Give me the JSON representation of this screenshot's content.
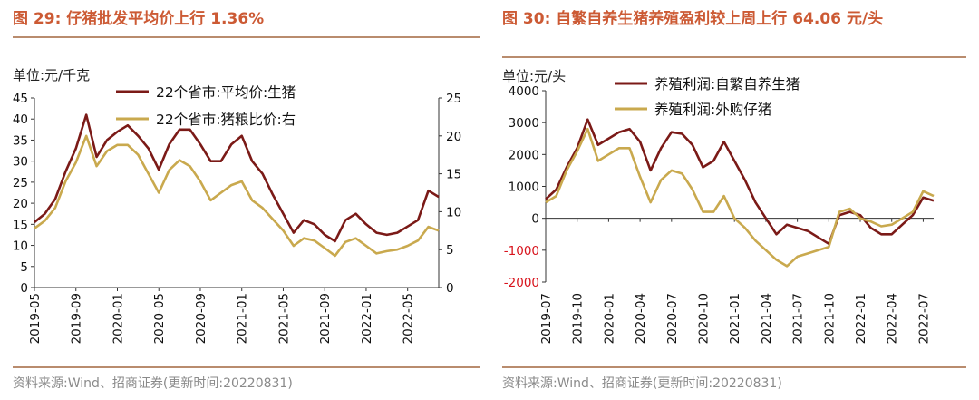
{
  "figures": [
    {
      "title": "图 29:  仔猪批发平均价上行 1.36%",
      "source": "资料来源:Wind、招商证券(更新时间:20220831)"
    },
    {
      "title": "图 30:  自繁自养生猪养殖盈利较上周上行 64.06 元/头",
      "source": "资料来源:Wind、招商证券(更新时间:20220831)"
    }
  ],
  "chart_data": [
    {
      "type": "line",
      "ylabel": "单位:元/千克",
      "ylim": [
        0,
        45
      ],
      "y_ticks": [
        0,
        5,
        10,
        15,
        20,
        25,
        30,
        35,
        40,
        45
      ],
      "y2lim": [
        0,
        25
      ],
      "y2_ticks": [
        0,
        5,
        10,
        15,
        20,
        25
      ],
      "x_ticks": [
        "2019-05",
        "2019-09",
        "2020-01",
        "2020-05",
        "2020-09",
        "2021-01",
        "2021-05",
        "2021-09",
        "2022-01",
        "2022-05"
      ],
      "legend_position": "top",
      "series": [
        {
          "name": "22个省市:平均价:生猪",
          "axis": "left",
          "color": "#7b1a17",
          "points": [
            [
              "2019-05",
              15.5
            ],
            [
              "2019-06",
              17.5
            ],
            [
              "2019-07",
              21
            ],
            [
              "2019-08",
              27.5
            ],
            [
              "2019-09",
              33
            ],
            [
              "2019-10",
              41
            ],
            [
              "2019-11",
              31
            ],
            [
              "2019-12",
              35
            ],
            [
              "2020-01",
              37
            ],
            [
              "2020-02",
              38.5
            ],
            [
              "2020-03",
              36
            ],
            [
              "2020-04",
              33
            ],
            [
              "2020-05",
              28
            ],
            [
              "2020-06",
              34
            ],
            [
              "2020-07",
              37.5
            ],
            [
              "2020-08",
              37.5
            ],
            [
              "2020-09",
              34
            ],
            [
              "2020-10",
              30
            ],
            [
              "2020-11",
              30
            ],
            [
              "2020-12",
              34
            ],
            [
              "2021-01",
              36
            ],
            [
              "2021-02",
              30
            ],
            [
              "2021-03",
              27
            ],
            [
              "2021-04",
              22
            ],
            [
              "2021-05",
              17.5
            ],
            [
              "2021-06",
              13
            ],
            [
              "2021-07",
              16
            ],
            [
              "2021-08",
              15
            ],
            [
              "2021-09",
              12.5
            ],
            [
              "2021-10",
              11
            ],
            [
              "2021-11",
              16
            ],
            [
              "2021-12",
              17.5
            ],
            [
              "2022-01",
              15
            ],
            [
              "2022-02",
              13
            ],
            [
              "2022-03",
              12.5
            ],
            [
              "2022-04",
              13
            ],
            [
              "2022-05",
              14.5
            ],
            [
              "2022-06",
              16
            ],
            [
              "2022-07",
              23
            ],
            [
              "2022-08",
              21.5
            ]
          ]
        },
        {
          "name": "22个省市:猪粮比价:右",
          "axis": "right",
          "color": "#c9a94e",
          "points": [
            [
              "2019-05",
              7.8
            ],
            [
              "2019-06",
              8.8
            ],
            [
              "2019-07",
              10.5
            ],
            [
              "2019-08",
              14
            ],
            [
              "2019-09",
              16.5
            ],
            [
              "2019-10",
              20
            ],
            [
              "2019-11",
              16
            ],
            [
              "2019-12",
              18
            ],
            [
              "2020-01",
              18.8
            ],
            [
              "2020-02",
              18.8
            ],
            [
              "2020-03",
              17.5
            ],
            [
              "2020-04",
              15
            ],
            [
              "2020-05",
              12.5
            ],
            [
              "2020-06",
              15.5
            ],
            [
              "2020-07",
              16.8
            ],
            [
              "2020-08",
              16
            ],
            [
              "2020-09",
              14
            ],
            [
              "2020-10",
              11.5
            ],
            [
              "2020-11",
              12.5
            ],
            [
              "2020-12",
              13.5
            ],
            [
              "2021-01",
              14
            ],
            [
              "2021-02",
              11.5
            ],
            [
              "2021-03",
              10.5
            ],
            [
              "2021-04",
              9
            ],
            [
              "2021-05",
              7.5
            ],
            [
              "2021-06",
              5.5
            ],
            [
              "2021-07",
              6.5
            ],
            [
              "2021-08",
              6.2
            ],
            [
              "2021-09",
              5.2
            ],
            [
              "2021-10",
              4.2
            ],
            [
              "2021-11",
              6
            ],
            [
              "2021-12",
              6.5
            ],
            [
              "2022-01",
              5.5
            ],
            [
              "2022-02",
              4.5
            ],
            [
              "2022-03",
              4.8
            ],
            [
              "2022-04",
              5
            ],
            [
              "2022-05",
              5.5
            ],
            [
              "2022-06",
              6.2
            ],
            [
              "2022-07",
              8
            ],
            [
              "2022-08",
              7.5
            ]
          ]
        }
      ]
    },
    {
      "type": "line",
      "ylabel": "单位:元/头",
      "ylim": [
        -2000,
        4000
      ],
      "y_ticks": [
        -2000,
        -1000,
        0,
        1000,
        2000,
        3000,
        4000
      ],
      "x_ticks": [
        "2019-07",
        "2019-10",
        "2020-01",
        "2020-04",
        "2020-07",
        "2020-10",
        "2021-01",
        "2021-04",
        "2021-07",
        "2021-10",
        "2022-01",
        "2022-04",
        "2022-07"
      ],
      "legend_position": "top",
      "series": [
        {
          "name": "养殖利润:自繁自养生猪",
          "color": "#7b1a17",
          "points": [
            [
              "2019-07",
              600
            ],
            [
              "2019-08",
              900
            ],
            [
              "2019-09",
              1600
            ],
            [
              "2019-10",
              2200
            ],
            [
              "2019-11",
              3100
            ],
            [
              "2019-12",
              2300
            ],
            [
              "2020-01",
              2500
            ],
            [
              "2020-02",
              2700
            ],
            [
              "2020-03",
              2800
            ],
            [
              "2020-04",
              2400
            ],
            [
              "2020-05",
              1500
            ],
            [
              "2020-06",
              2200
            ],
            [
              "2020-07",
              2700
            ],
            [
              "2020-08",
              2650
            ],
            [
              "2020-09",
              2300
            ],
            [
              "2020-10",
              1600
            ],
            [
              "2020-11",
              1800
            ],
            [
              "2020-12",
              2400
            ],
            [
              "2021-01",
              1800
            ],
            [
              "2021-02",
              1200
            ],
            [
              "2021-03",
              500
            ],
            [
              "2021-04",
              0
            ],
            [
              "2021-05",
              -500
            ],
            [
              "2021-06",
              -200
            ],
            [
              "2021-07",
              -300
            ],
            [
              "2021-08",
              -400
            ],
            [
              "2021-09",
              -600
            ],
            [
              "2021-10",
              -800
            ],
            [
              "2021-11",
              100
            ],
            [
              "2021-12",
              200
            ],
            [
              "2022-01",
              100
            ],
            [
              "2022-02",
              -300
            ],
            [
              "2022-03",
              -500
            ],
            [
              "2022-04",
              -500
            ],
            [
              "2022-05",
              -200
            ],
            [
              "2022-06",
              100
            ],
            [
              "2022-07",
              650
            ],
            [
              "2022-08",
              550
            ]
          ]
        },
        {
          "name": "养殖利润:外购仔猪",
          "color": "#c9a94e",
          "points": [
            [
              "2019-07",
              500
            ],
            [
              "2019-08",
              700
            ],
            [
              "2019-09",
              1500
            ],
            [
              "2019-10",
              2100
            ],
            [
              "2019-11",
              2800
            ],
            [
              "2019-12",
              1800
            ],
            [
              "2020-01",
              2000
            ],
            [
              "2020-02",
              2200
            ],
            [
              "2020-03",
              2200
            ],
            [
              "2020-04",
              1300
            ],
            [
              "2020-05",
              500
            ],
            [
              "2020-06",
              1200
            ],
            [
              "2020-07",
              1500
            ],
            [
              "2020-08",
              1400
            ],
            [
              "2020-09",
              900
            ],
            [
              "2020-10",
              200
            ],
            [
              "2020-11",
              200
            ],
            [
              "2020-12",
              700
            ],
            [
              "2021-01",
              0
            ],
            [
              "2021-02",
              -300
            ],
            [
              "2021-03",
              -700
            ],
            [
              "2021-04",
              -1000
            ],
            [
              "2021-05",
              -1300
            ],
            [
              "2021-06",
              -1500
            ],
            [
              "2021-07",
              -1200
            ],
            [
              "2021-08",
              -1100
            ],
            [
              "2021-09",
              -1000
            ],
            [
              "2021-10",
              -900
            ],
            [
              "2021-11",
              200
            ],
            [
              "2021-12",
              300
            ],
            [
              "2022-01",
              0
            ],
            [
              "2022-02",
              -100
            ],
            [
              "2022-03",
              -250
            ],
            [
              "2022-04",
              -200
            ],
            [
              "2022-05",
              0
            ],
            [
              "2022-06",
              200
            ],
            [
              "2022-07",
              850
            ],
            [
              "2022-08",
              700
            ]
          ]
        }
      ]
    }
  ]
}
